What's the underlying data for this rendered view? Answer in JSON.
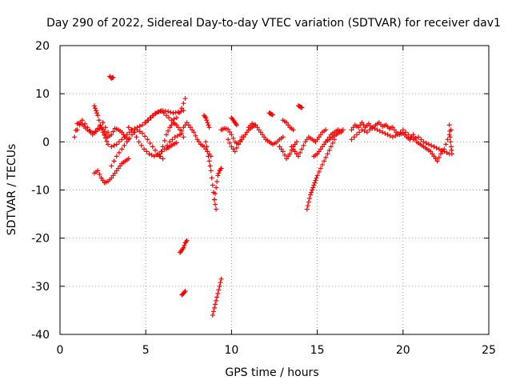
{
  "chart_data": {
    "type": "scatter",
    "title": "Day 290 of 2022, Sidereal Day-to-day VTEC variation (SDTVAR) for receiver dav1",
    "xlabel": "GPS time / hours",
    "ylabel": "SDTVAR / TECUs",
    "xlim": [
      0,
      25
    ],
    "ylim": [
      -40,
      20
    ],
    "xticks": [
      0,
      5,
      10,
      15,
      20,
      25
    ],
    "yticks": [
      -40,
      -30,
      -20,
      -10,
      0,
      10,
      20
    ],
    "grid": true,
    "marker": "+",
    "series": [
      {
        "name": "SDTVAR",
        "color": "#ff0000",
        "segments": [
          {
            "x": [
              0.85,
              1.0,
              1.2,
              1.4,
              1.6,
              1.8,
              2.0,
              2.2,
              2.4,
              2.6,
              2.8,
              3.0,
              3.2,
              3.4,
              3.6,
              3.8,
              4.0
            ],
            "y": [
              1.0,
              3.8,
              4.0,
              3.2,
              2.5,
              2.0,
              1.8,
              2.5,
              3.0,
              2.2,
              1.0,
              1.5,
              2.8,
              2.5,
              2.0,
              1.0,
              0.5
            ]
          },
          {
            "x": [
              1.0,
              1.3,
              1.6,
              1.9,
              2.2,
              2.5,
              2.8
            ],
            "y": [
              2.5,
              4.5,
              3.0,
              1.5,
              2.8,
              4.0,
              2.0
            ]
          },
          {
            "x": [
              2.0,
              2.1,
              2.2,
              2.35,
              2.5,
              2.65,
              2.8
            ],
            "y": [
              7.5,
              6.5,
              5.5,
              3.5,
              2.0,
              0.8,
              -0.5
            ]
          },
          {
            "x": [
              2.0,
              2.2,
              2.4,
              2.6,
              2.8,
              3.0,
              3.2,
              3.4,
              3.6,
              3.8,
              4.0
            ],
            "y": [
              -6.5,
              -6.0,
              -7.5,
              -8.5,
              -8.2,
              -7.5,
              -6.5,
              -5.5,
              -4.5,
              -4.0,
              -3.5
            ]
          },
          {
            "x": [
              2.9,
              3.0,
              3.1
            ],
            "y": [
              13.6,
              13.2,
              13.4
            ]
          },
          {
            "x": [
              3.0,
              3.3,
              3.6,
              3.9,
              4.2,
              4.5,
              4.8,
              5.1,
              5.4,
              5.7,
              6.0,
              6.3,
              6.6,
              6.9,
              7.2
            ],
            "y": [
              -1.0,
              -0.5,
              0.5,
              1.5,
              2.5,
              3.0,
              3.5,
              4.5,
              5.5,
              6.2,
              6.5,
              6.3,
              6.0,
              6.2,
              6.5
            ]
          },
          {
            "x": [
              3.0,
              3.3,
              3.6,
              3.9,
              4.2,
              4.5,
              4.8,
              5.1,
              5.4,
              5.7,
              6.0
            ],
            "y": [
              -5.0,
              -3.0,
              -1.5,
              0.0,
              1.5,
              2.5,
              1.8,
              0.5,
              -1.0,
              -2.5,
              -3.5
            ]
          },
          {
            "x": [
              4.0,
              4.3,
              4.6,
              4.9,
              5.2,
              5.5,
              5.8,
              6.1,
              6.4,
              6.7,
              7.0
            ],
            "y": [
              3.0,
              2.0,
              0.0,
              -1.5,
              -2.5,
              -3.0,
              -2.5,
              -1.5,
              0.0,
              1.0,
              1.5
            ]
          },
          {
            "x": [
              5.0,
              5.3,
              5.6,
              5.9,
              6.2,
              6.5,
              6.8,
              7.1,
              7.3
            ],
            "y": [
              4.0,
              5.0,
              6.0,
              6.5,
              5.5,
              4.5,
              5.0,
              7.0,
              9.0
            ]
          },
          {
            "x": [
              5.8,
              6.0,
              6.2,
              6.4,
              6.6,
              6.8,
              7.0,
              7.2
            ],
            "y": [
              -3.0,
              -1.0,
              1.5,
              3.0,
              4.0,
              3.5,
              2.5,
              1.0
            ]
          },
          {
            "x": [
              6.2,
              6.4,
              6.6,
              6.8
            ],
            "y": [
              -1.5,
              -1.0,
              -0.5,
              -0.2
            ]
          },
          {
            "x": [
              7.0,
              7.2,
              7.4,
              7.6,
              7.8,
              8.0,
              8.2,
              8.4,
              8.6,
              8.8
            ],
            "y": [
              1.5,
              3.0,
              4.0,
              3.0,
              2.0,
              0.5,
              -0.5,
              -1.0,
              -2.0,
              -3.0
            ]
          },
          {
            "x": [
              7.0,
              7.1,
              7.2,
              7.3,
              7.4
            ],
            "y": [
              -23.0,
              -22.5,
              -22.0,
              -21.0,
              -20.5
            ]
          },
          {
            "x": [
              7.1,
              7.2,
              7.3
            ],
            "y": [
              -31.8,
              -31.5,
              -31.0
            ]
          },
          {
            "x": [
              8.4,
              8.5,
              8.6,
              8.7
            ],
            "y": [
              5.5,
              5.0,
              4.0,
              3.0
            ]
          },
          {
            "x": [
              8.5,
              8.6,
              8.7,
              8.8,
              8.9,
              9.0,
              9.1
            ],
            "y": [
              0.0,
              -2.0,
              -4.0,
              -6.0,
              -9.0,
              -12.0,
              -14.0
            ]
          },
          {
            "x": [
              9.0,
              9.1,
              9.2,
              9.3,
              9.4
            ],
            "y": [
              -12.0,
              -9.5,
              -7.0,
              -6.0,
              -5.5
            ]
          },
          {
            "x": [
              8.9,
              9.0,
              9.1,
              9.2,
              9.3,
              9.4
            ],
            "y": [
              -36.0,
              -34.5,
              -33.0,
              -31.5,
              -30.0,
              -28.5
            ]
          },
          {
            "x": [
              9.4,
              9.6,
              9.8,
              10.0,
              10.2,
              10.4,
              10.6,
              10.8,
              11.0,
              11.2,
              11.4
            ],
            "y": [
              2.5,
              2.8,
              2.6,
              1.5,
              0.0,
              -0.5,
              0.5,
              1.5,
              2.5,
              3.0,
              3.5
            ]
          },
          {
            "x": [
              9.8,
              10.0,
              10.2,
              10.4,
              10.6
            ],
            "y": [
              0.5,
              -1.0,
              -2.0,
              -0.5,
              1.0
            ]
          },
          {
            "x": [
              10.0,
              10.1,
              10.2,
              10.3
            ],
            "y": [
              5.0,
              4.5,
              4.0,
              3.5
            ]
          },
          {
            "x": [
              11.0,
              11.2,
              11.4,
              11.6,
              11.8,
              12.0,
              12.2,
              12.4,
              12.6,
              12.8,
              13.0
            ],
            "y": [
              3.0,
              3.8,
              3.5,
              2.5,
              1.5,
              0.5,
              0.0,
              -0.5,
              -0.2,
              0.5,
              1.0
            ]
          },
          {
            "x": [
              12.2,
              12.3,
              12.4
            ],
            "y": [
              6.0,
              5.8,
              5.6
            ]
          },
          {
            "x": [
              12.8,
              13.0,
              13.2,
              13.4,
              13.6,
              13.8
            ],
            "y": [
              -1.0,
              -2.0,
              -3.5,
              -2.5,
              -1.0,
              0.0
            ]
          },
          {
            "x": [
              13.0,
              13.2,
              13.4,
              13.6
            ],
            "y": [
              4.5,
              4.0,
              3.0,
              2.5
            ]
          },
          {
            "x": [
              13.9,
              14.0,
              14.1
            ],
            "y": [
              7.5,
              7.3,
              7.1
            ]
          },
          {
            "x": [
              13.5,
              13.7,
              13.9,
              14.1,
              14.3,
              14.5,
              14.7,
              14.9,
              15.1,
              15.3,
              15.5
            ],
            "y": [
              -1.0,
              -2.0,
              -3.0,
              -1.5,
              0.0,
              1.0,
              0.5,
              0.0,
              1.0,
              2.0,
              2.5
            ]
          },
          {
            "x": [
              14.4,
              14.5,
              14.6,
              14.7,
              14.8,
              14.9,
              15.0,
              15.2,
              15.4,
              15.6,
              15.8,
              16.0
            ],
            "y": [
              -14.0,
              -12.5,
              -11.0,
              -10.0,
              -9.0,
              -8.0,
              -7.0,
              -5.5,
              -4.0,
              -2.5,
              -1.0,
              0.5
            ]
          },
          {
            "x": [
              14.8,
              15.0,
              15.2,
              15.4,
              15.6,
              15.8,
              16.0,
              16.2,
              16.4
            ],
            "y": [
              -3.0,
              -2.5,
              -1.5,
              -0.5,
              0.5,
              1.5,
              2.0,
              2.5,
              2.0
            ]
          },
          {
            "x": [
              15.5,
              15.7,
              15.9,
              16.1,
              16.3,
              16.5
            ],
            "y": [
              0.0,
              0.5,
              1.0,
              1.5,
              2.0,
              2.5
            ]
          },
          {
            "x": [
              17.0,
              17.2,
              17.4,
              17.6,
              17.8,
              18.0,
              18.2,
              18.4,
              18.6,
              18.8,
              19.0,
              19.2,
              19.4,
              19.6,
              19.8,
              20.0,
              20.2,
              20.4,
              20.6,
              20.8,
              21.0,
              21.2,
              21.4,
              21.6,
              21.8,
              22.0,
              22.2,
              22.4,
              22.6,
              22.8
            ],
            "y": [
              2.5,
              3.5,
              3.0,
              4.0,
              3.0,
              3.8,
              2.8,
              3.5,
              4.0,
              3.2,
              3.5,
              2.8,
              3.0,
              2.0,
              1.5,
              1.8,
              1.0,
              0.5,
              1.5,
              0.0,
              -0.5,
              -1.0,
              -1.5,
              -2.0,
              -3.0,
              -4.0,
              -2.5,
              -1.5,
              0.5,
              2.5
            ]
          },
          {
            "x": [
              17.0,
              17.3,
              17.6,
              17.9,
              18.2,
              18.5,
              18.8,
              19.1,
              19.4,
              19.7,
              20.0,
              20.3,
              20.6,
              20.9,
              21.2,
              21.5,
              21.8,
              22.1,
              22.4,
              22.7
            ],
            "y": [
              0.5,
              1.5,
              2.5,
              2.0,
              3.0,
              2.5,
              2.0,
              1.5,
              1.0,
              1.5,
              2.5,
              1.5,
              0.5,
              1.0,
              0.0,
              -0.5,
              -1.0,
              -1.5,
              -2.0,
              -2.5
            ]
          },
          {
            "x": [
              22.7,
              22.75,
              22.8,
              22.85
            ],
            "y": [
              3.5,
              1.0,
              -1.0,
              -2.5
            ]
          }
        ]
      }
    ]
  }
}
